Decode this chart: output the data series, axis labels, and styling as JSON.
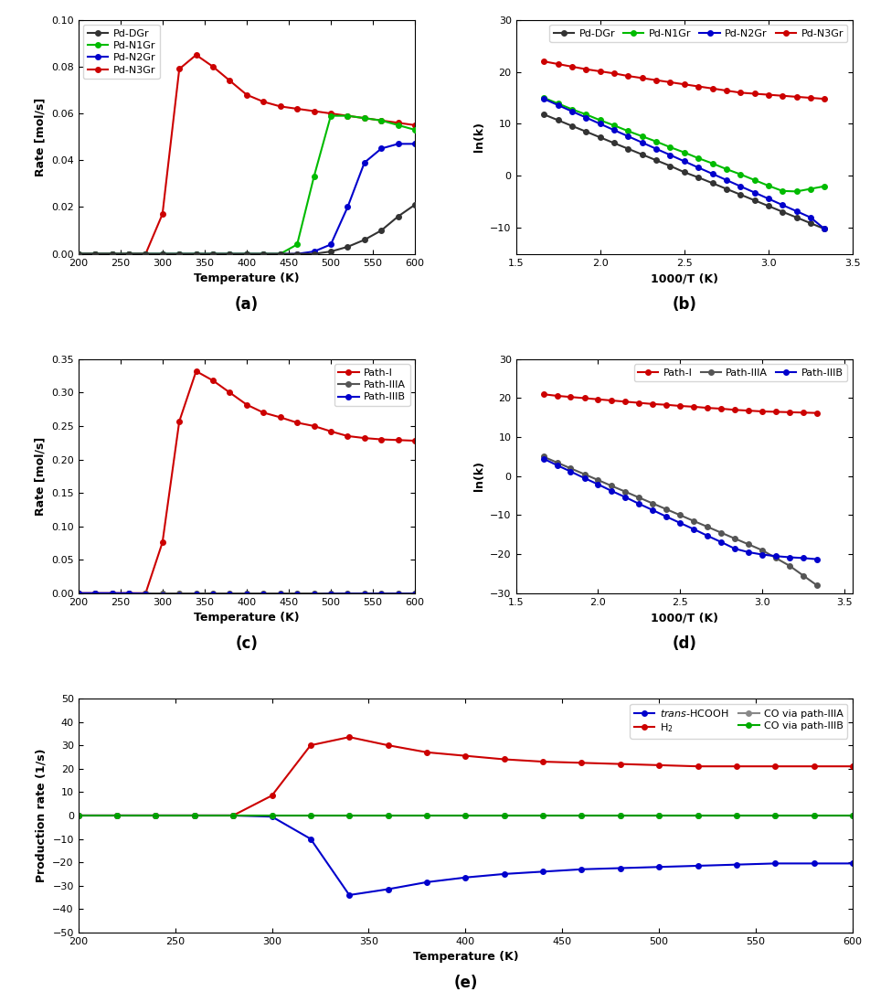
{
  "temp_a": [
    200,
    220,
    240,
    260,
    280,
    300,
    320,
    340,
    360,
    380,
    400,
    420,
    440,
    460,
    480,
    500,
    520,
    540,
    560,
    580,
    600
  ],
  "PdDGr_rate": [
    0.0,
    0.0,
    0.0,
    0.0,
    0.0,
    0.0,
    0.0,
    0.0,
    0.0,
    0.0,
    0.0,
    0.0,
    0.0,
    0.0,
    0.0,
    0.001,
    0.003,
    0.006,
    0.01,
    0.016,
    0.021
  ],
  "PdN1Gr_rate": [
    0.0,
    0.0,
    0.0,
    0.0,
    0.0,
    0.0,
    0.0,
    0.0,
    0.0,
    0.0,
    0.0,
    0.0,
    0.0,
    0.004,
    0.033,
    0.059,
    0.059,
    0.058,
    0.057,
    0.055,
    0.053
  ],
  "PdN2Gr_rate": [
    0.0,
    0.0,
    0.0,
    0.0,
    0.0,
    0.0,
    0.0,
    0.0,
    0.0,
    0.0,
    0.0,
    0.0,
    0.0,
    0.0,
    0.001,
    0.004,
    0.02,
    0.039,
    0.045,
    0.047,
    0.047
  ],
  "PdN3Gr_rate": [
    0.0,
    0.0,
    0.0,
    0.0,
    0.0,
    0.017,
    0.079,
    0.085,
    0.08,
    0.074,
    0.068,
    0.065,
    0.063,
    0.062,
    0.061,
    0.06,
    0.059,
    0.058,
    0.057,
    0.056,
    0.055
  ],
  "invT_b": [
    1.667,
    1.75,
    1.833,
    1.917,
    2.0,
    2.083,
    2.167,
    2.25,
    2.333,
    2.417,
    2.5,
    2.583,
    2.667,
    2.75,
    2.833,
    2.917,
    3.0,
    3.083,
    3.167,
    3.25,
    3.333
  ],
  "PdDGr_lnk": [
    11.8,
    10.7,
    9.6,
    8.5,
    7.4,
    6.3,
    5.2,
    4.1,
    3.0,
    1.9,
    0.7,
    -0.3,
    -1.4,
    -2.5,
    -3.6,
    -4.7,
    -5.8,
    -6.9,
    -8.0,
    -9.1,
    -10.2
  ],
  "PdN1Gr_lnk": [
    15.0,
    13.9,
    12.8,
    11.8,
    10.7,
    9.7,
    8.6,
    7.6,
    6.6,
    5.5,
    4.5,
    3.4,
    2.4,
    1.3,
    0.3,
    -0.8,
    -1.9,
    -2.9,
    -3.0,
    -2.5,
    -2.0
  ],
  "PdN2Gr_lnk": [
    14.8,
    13.6,
    12.4,
    11.2,
    10.0,
    8.8,
    7.6,
    6.4,
    5.2,
    4.0,
    2.8,
    1.6,
    0.4,
    -0.8,
    -2.0,
    -3.2,
    -4.4,
    -5.6,
    -6.8,
    -8.0,
    -10.2
  ],
  "PdN3Gr_lnk": [
    22.0,
    21.5,
    21.0,
    20.5,
    20.1,
    19.7,
    19.2,
    18.8,
    18.4,
    18.0,
    17.6,
    17.2,
    16.8,
    16.4,
    16.0,
    15.8,
    15.6,
    15.4,
    15.2,
    15.0,
    14.8
  ],
  "temp_c": [
    200,
    220,
    240,
    260,
    280,
    300,
    320,
    340,
    360,
    380,
    400,
    420,
    440,
    460,
    480,
    500,
    520,
    540,
    560,
    580,
    600
  ],
  "PathI_rate": [
    0.0,
    0.0,
    0.0,
    0.0,
    0.0,
    0.076,
    0.257,
    0.332,
    0.318,
    0.3,
    0.282,
    0.27,
    0.263,
    0.255,
    0.25,
    0.242,
    0.235,
    0.232,
    0.23,
    0.229,
    0.228
  ],
  "PathIIIA_rate": [
    0.0,
    0.0,
    0.0,
    0.0,
    0.0,
    0.0,
    0.0,
    0.0,
    0.0,
    0.0,
    0.0,
    0.0,
    0.0,
    0.0,
    0.0,
    0.0,
    0.0,
    0.0,
    0.0,
    0.0,
    0.0
  ],
  "PathIIIB_rate": [
    0.0,
    0.0,
    0.0,
    0.0,
    -0.001,
    -0.003,
    -0.003,
    -0.002,
    -0.002,
    -0.002,
    -0.002,
    -0.002,
    -0.002,
    -0.002,
    -0.002,
    -0.001,
    -0.001,
    -0.001,
    -0.001,
    -0.001,
    -0.001
  ],
  "invT_d": [
    1.667,
    1.75,
    1.833,
    1.917,
    2.0,
    2.083,
    2.167,
    2.25,
    2.333,
    2.417,
    2.5,
    2.583,
    2.667,
    2.75,
    2.833,
    2.917,
    3.0,
    3.083,
    3.167,
    3.25,
    3.333
  ],
  "PathI_lnk": [
    21.0,
    20.6,
    20.3,
    20.0,
    19.7,
    19.4,
    19.1,
    18.8,
    18.5,
    18.3,
    18.0,
    17.8,
    17.5,
    17.3,
    17.0,
    16.8,
    16.6,
    16.5,
    16.4,
    16.3,
    16.2
  ],
  "PathIIIA_lnk": [
    5.0,
    3.5,
    2.0,
    0.5,
    -1.0,
    -2.5,
    -4.0,
    -5.5,
    -7.0,
    -8.5,
    -10.0,
    -11.5,
    -13.0,
    -14.5,
    -16.0,
    -17.5,
    -19.0,
    -21.0,
    -23.0,
    -25.5,
    -28.0
  ],
  "PathIIIB_lnk": [
    4.5,
    2.8,
    1.2,
    -0.5,
    -2.1,
    -3.8,
    -5.4,
    -7.1,
    -8.7,
    -10.4,
    -12.0,
    -13.6,
    -15.3,
    -16.9,
    -18.6,
    -19.5,
    -20.1,
    -20.5,
    -20.8,
    -21.0,
    -21.3
  ],
  "temp_e": [
    200,
    220,
    240,
    260,
    280,
    300,
    320,
    340,
    360,
    380,
    400,
    420,
    440,
    460,
    480,
    500,
    520,
    540,
    560,
    580,
    600
  ],
  "transFCOOH_prod": [
    0.0,
    0.0,
    0.0,
    0.0,
    0.0,
    -0.5,
    -10.0,
    -34.0,
    -31.5,
    -28.5,
    -26.5,
    -25.0,
    -24.0,
    -23.0,
    -22.5,
    -22.0,
    -21.5,
    -21.0,
    -20.5,
    -20.5,
    -20.5
  ],
  "H2_prod": [
    0.0,
    0.0,
    0.0,
    0.0,
    0.0,
    8.5,
    30.0,
    33.5,
    30.0,
    27.0,
    25.5,
    24.0,
    23.0,
    22.5,
    22.0,
    21.5,
    21.0,
    21.0,
    21.0,
    21.0,
    21.0
  ],
  "COviaIIIA_prod": [
    0.0,
    0.0,
    0.0,
    0.0,
    0.0,
    0.0,
    0.0,
    0.0,
    0.0,
    0.0,
    0.0,
    0.0,
    0.0,
    0.0,
    0.0,
    0.0,
    0.0,
    0.0,
    0.0,
    0.0,
    0.0
  ],
  "COviaIIIB_prod": [
    0.0,
    0.0,
    0.0,
    0.0,
    0.0,
    0.0,
    0.0,
    0.0,
    0.0,
    0.0,
    0.0,
    0.0,
    0.0,
    0.0,
    0.0,
    0.0,
    0.0,
    0.0,
    0.0,
    0.0,
    0.0
  ],
  "colors": {
    "PdDGr": "#333333",
    "PdN1Gr": "#00bb00",
    "PdN2Gr": "#0000cc",
    "PdN3Gr": "#cc0000",
    "PathI": "#cc0000",
    "PathIIIA": "#555555",
    "PathIIIB": "#0000cc",
    "transFCOOH": "#0000cc",
    "H2": "#cc0000",
    "COviaIIIA": "#888888",
    "COviaIIIB": "#00aa00"
  },
  "marker": "o",
  "markersize": 4,
  "linewidth": 1.5,
  "label_a_italic": "trans-HCOOH"
}
